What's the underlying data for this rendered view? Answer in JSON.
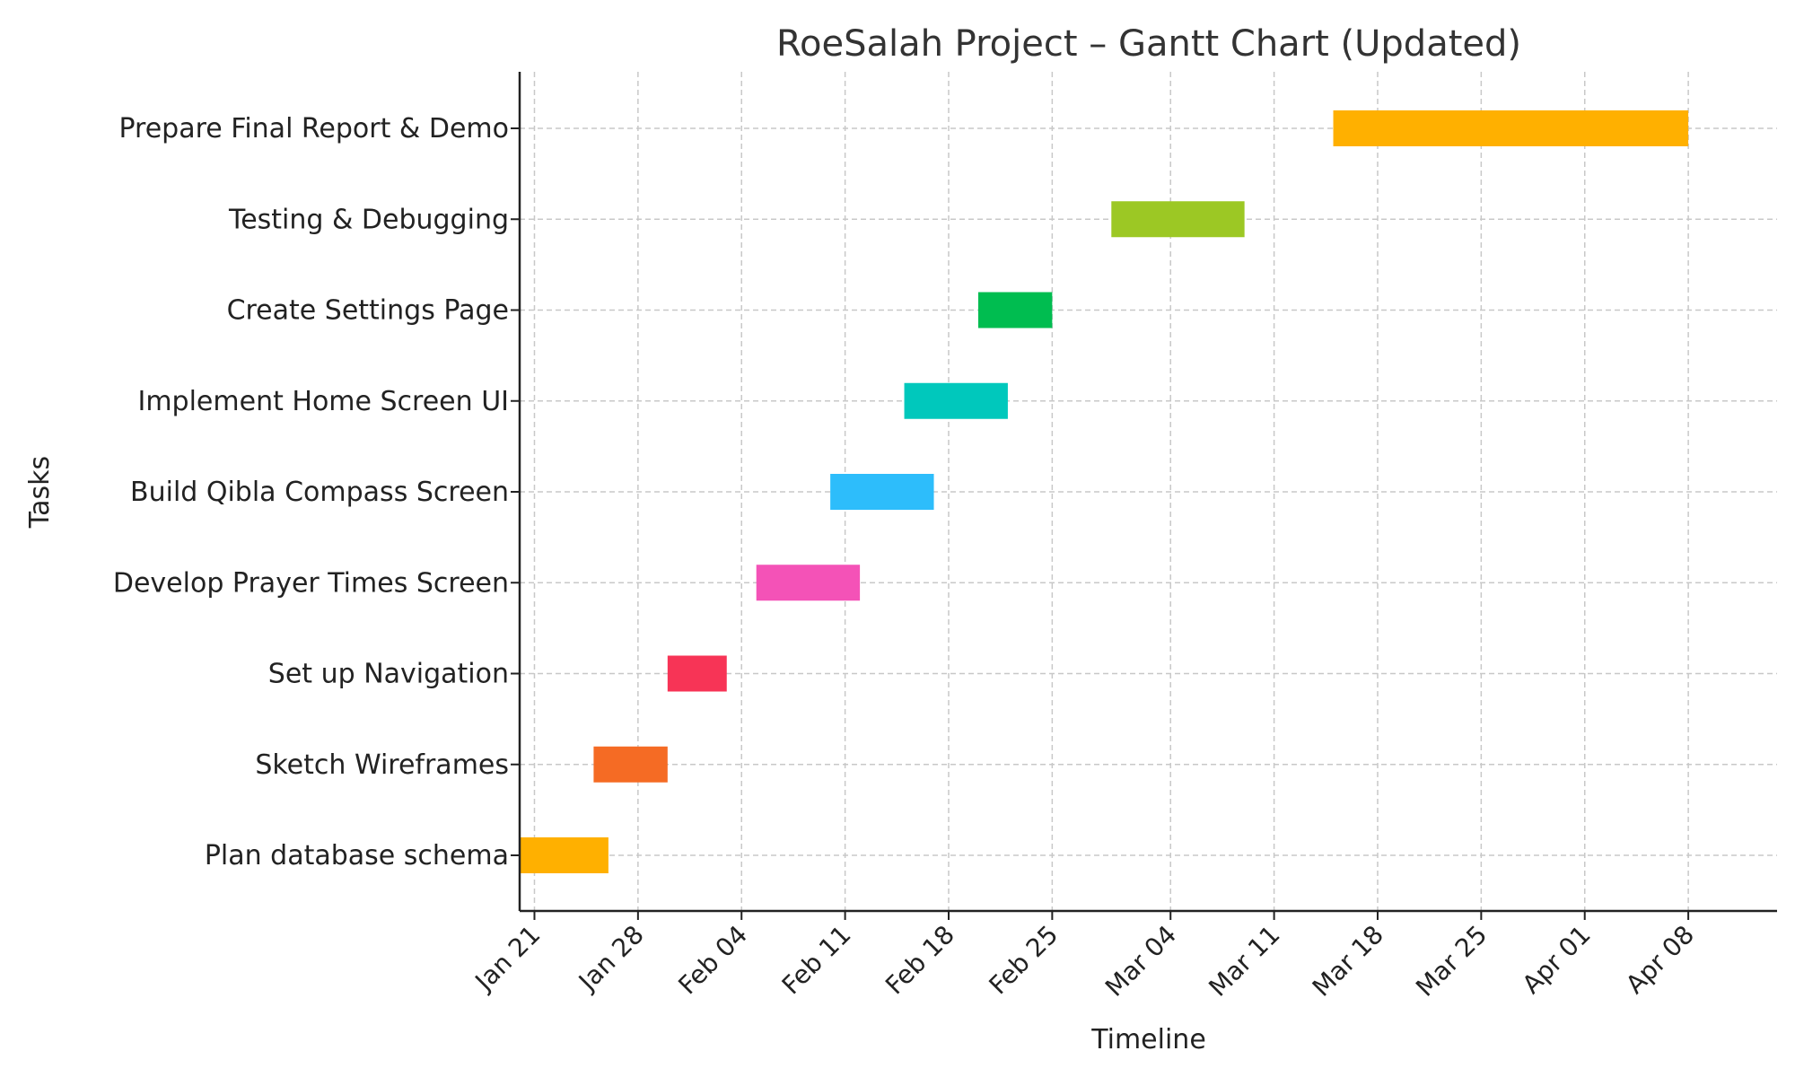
{
  "chart_data": {
    "type": "bar",
    "orientation": "horizontal-gantt",
    "title": "RoeSalah Project – Gantt Chart (Updated)",
    "xlabel": "Timeline",
    "ylabel": "Tasks",
    "grid": true,
    "year": 2024,
    "xlim": [
      "2024-01-20",
      "2024-04-14"
    ],
    "x_ticks": [
      {
        "date": "2024-01-21",
        "label": "Jan 21"
      },
      {
        "date": "2024-01-28",
        "label": "Jan 28"
      },
      {
        "date": "2024-02-04",
        "label": "Feb 04"
      },
      {
        "date": "2024-02-11",
        "label": "Feb 11"
      },
      {
        "date": "2024-02-18",
        "label": "Feb 18"
      },
      {
        "date": "2024-02-25",
        "label": "Feb 25"
      },
      {
        "date": "2024-03-04",
        "label": "Mar 04"
      },
      {
        "date": "2024-03-11",
        "label": "Mar 11"
      },
      {
        "date": "2024-03-18",
        "label": "Mar 18"
      },
      {
        "date": "2024-03-25",
        "label": "Mar 25"
      },
      {
        "date": "2024-04-01",
        "label": "Apr 01"
      },
      {
        "date": "2024-04-08",
        "label": "Apr 08"
      }
    ],
    "tasks": [
      {
        "name": "Plan database schema",
        "start": "2024-01-20",
        "end": "2024-01-26",
        "color": "#FFB000"
      },
      {
        "name": "Sketch Wireframes",
        "start": "2024-01-25",
        "end": "2024-01-30",
        "color": "#F56B24"
      },
      {
        "name": "Set up Navigation",
        "start": "2024-01-30",
        "end": "2024-02-03",
        "color": "#F73456"
      },
      {
        "name": "Develop Prayer Times Screen",
        "start": "2024-02-05",
        "end": "2024-02-12",
        "color": "#F452B7"
      },
      {
        "name": "Build Qibla Compass Screen",
        "start": "2024-02-10",
        "end": "2024-02-17",
        "color": "#2DBDFB"
      },
      {
        "name": "Implement Home Screen UI",
        "start": "2024-02-15",
        "end": "2024-02-22",
        "color": "#00C8BC"
      },
      {
        "name": "Create Settings Page",
        "start": "2024-02-20",
        "end": "2024-02-25",
        "color": "#00BD50"
      },
      {
        "name": "Testing & Debugging",
        "start": "2024-02-29",
        "end": "2024-03-09",
        "color": "#9CC824"
      },
      {
        "name": "Prepare Final Report & Demo",
        "start": "2024-03-15",
        "end": "2024-04-08",
        "color": "#FFB000"
      }
    ]
  }
}
